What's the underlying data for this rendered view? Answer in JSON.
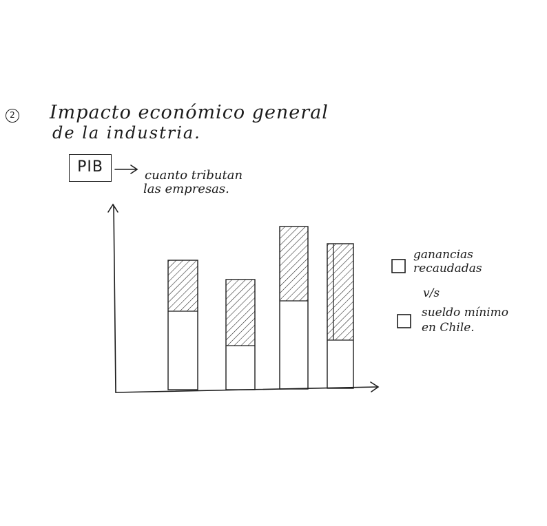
{
  "heading": {
    "number": "2",
    "title_line1": "Impacto económico general",
    "title_line2": "de la industria."
  },
  "pib": {
    "label": "PIB",
    "note_line1": "cuanto tributan",
    "note_line2": "las empresas."
  },
  "legend": {
    "item1_line1": "ganancias",
    "item1_line2": "recaudadas",
    "separator": "v/s",
    "item2_line1": "sueldo mínimo",
    "item2_line2": "en Chile."
  },
  "colors": {
    "ink": "#1c1c1c",
    "paper": "#ffffff"
  }
}
